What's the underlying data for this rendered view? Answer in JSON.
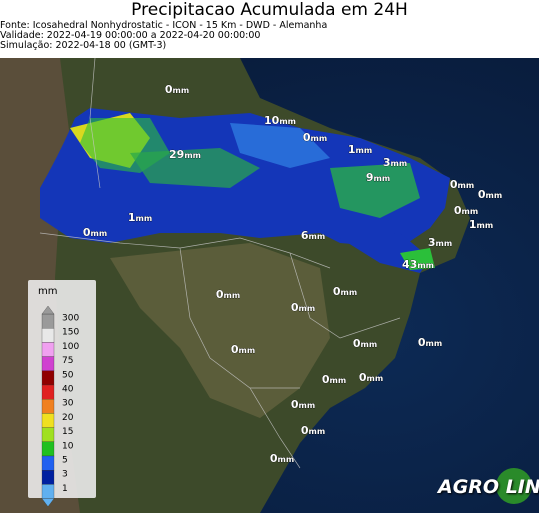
{
  "header": {
    "title": "Precipitacao Acumulada em 24H",
    "source": "Fonte: Icosahedral Nonhydrostatic - ICON - 15 Km - DWD - Alemanha",
    "validity": "Validade: 2022-04-19 00:00:00 a 2022-04-20 00:00:00",
    "simulation": "Simulação: 2022-04-18 00 (GMT-3)"
  },
  "legend": {
    "unit": "mm",
    "ticks": [
      "300",
      "150",
      "100",
      "75",
      "50",
      "40",
      "30",
      "20",
      "15",
      "10",
      "5",
      "3",
      "1"
    ]
  },
  "labels": [
    {
      "value": "0",
      "unit": "mm"
    },
    {
      "value": "10",
      "unit": "mm"
    },
    {
      "value": "29",
      "unit": "mm"
    },
    {
      "value": "0",
      "unit": "mm"
    },
    {
      "value": "1",
      "unit": "mm"
    },
    {
      "value": "3",
      "unit": "mm"
    },
    {
      "value": "9",
      "unit": "mm"
    },
    {
      "value": "0",
      "unit": "mm"
    },
    {
      "value": "0",
      "unit": "mm"
    },
    {
      "value": "0",
      "unit": "mm"
    },
    {
      "value": "1",
      "unit": "mm"
    },
    {
      "value": "0",
      "unit": "mm"
    },
    {
      "value": "6",
      "unit": "mm"
    },
    {
      "value": "1",
      "unit": "mm"
    },
    {
      "value": "3",
      "unit": "mm"
    },
    {
      "value": "43",
      "unit": "mm"
    },
    {
      "value": "0",
      "unit": "mm"
    },
    {
      "value": "0",
      "unit": "mm"
    },
    {
      "value": "0",
      "unit": "mm"
    },
    {
      "value": "0",
      "unit": "mm"
    },
    {
      "value": "0",
      "unit": "mm"
    },
    {
      "value": "0",
      "unit": "mm"
    },
    {
      "value": "0",
      "unit": "mm"
    },
    {
      "value": "0",
      "unit": "mm"
    },
    {
      "value": "0",
      "unit": "mm"
    },
    {
      "value": "0",
      "unit": "mm"
    },
    {
      "value": "0",
      "unit": "mm"
    }
  ],
  "logo": "AGRO LINK"
}
